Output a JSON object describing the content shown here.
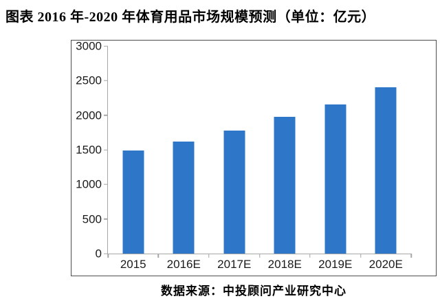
{
  "title": "图表  2016 年-2020 年体育用品市场规模预测（单位：亿元）",
  "source": "数据来源：中投顾问产业研究中心",
  "colors": {
    "bar": "#2E77C8",
    "axis": "#A6A6A6",
    "frame": "#4C4C4C",
    "text": "#1A1A1A"
  },
  "chart_data": {
    "type": "bar",
    "title": "2016年-2020年体育用品市场规模预测",
    "unit": "亿元",
    "categories": [
      "2015",
      "2016E",
      "2017E",
      "2018E",
      "2019E",
      "2020E"
    ],
    "values": [
      1490,
      1620,
      1780,
      1980,
      2160,
      2400
    ],
    "ylim": [
      0,
      3000
    ],
    "ytick_step": 500,
    "yticks": [
      0,
      500,
      1000,
      1500,
      2000,
      2500,
      3000
    ],
    "grid": false,
    "legend": false,
    "xlabel": "",
    "ylabel": ""
  }
}
